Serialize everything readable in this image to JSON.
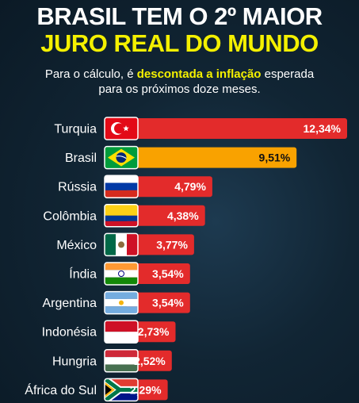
{
  "header": {
    "title_line1": "BRASIL TEM O 2º MAIOR",
    "title_line2": "JURO REAL DO MUNDO",
    "subtitle_pre": "Para o cálculo, é ",
    "subtitle_highlight": "descontada a inflação",
    "subtitle_post": " esperada",
    "subtitle_line2": "para os próximos doze meses."
  },
  "colors": {
    "bar_default": "#e32b2b",
    "bar_highlight": "#f9a200",
    "title_accent": "#f4f000"
  },
  "chart_data": {
    "type": "bar",
    "orientation": "horizontal",
    "categories": [
      "Turquia",
      "Brasil",
      "Rússia",
      "Colômbia",
      "México",
      "Índia",
      "Argentina",
      "Indonésia",
      "Hungria",
      "África do Sul"
    ],
    "values": [
      12.34,
      9.51,
      4.79,
      4.38,
      3.77,
      3.54,
      3.54,
      2.73,
      2.52,
      2.29
    ],
    "value_labels": [
      "12,34%",
      "9,51%",
      "4,79%",
      "4,38%",
      "3,77%",
      "3,54%",
      "3,54%",
      "2,73%",
      "2,52%",
      "2,29%"
    ],
    "flags": [
      "turkey-flag",
      "brazil-flag",
      "russia-flag",
      "colombia-flag",
      "mexico-flag",
      "india-flag",
      "argentina-flag",
      "indonesia-flag",
      "hungary-flag",
      "south-africa-flag"
    ],
    "highlight_category": "Brasil",
    "grid": false,
    "legend": "none"
  }
}
